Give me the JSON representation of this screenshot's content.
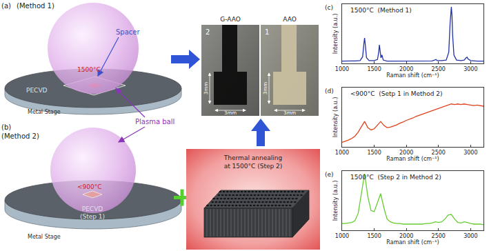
{
  "diagram": {
    "panel_a": {
      "label": "(a)",
      "method": "(Method 1)",
      "spacer": "Spacer",
      "temperature": "1500°C",
      "pecvd": "PECVD",
      "stage": "Metal Stage"
    },
    "panel_b": {
      "label": "(b)",
      "method": "(Method 2)",
      "temperature": "<900°C",
      "pecvd": "PECVD",
      "step": "(Step 1)",
      "stage": "Metal Stage"
    },
    "plasma_label": "Plasma ball",
    "photos": [
      {
        "label": "G-AAO",
        "number": "2",
        "width": "3mm",
        "height": "3mm"
      },
      {
        "label": "AAO",
        "number": "1",
        "width": "3mm",
        "height": "3mm"
      }
    ],
    "annealing": {
      "lines": [
        "Thermal annealing",
        "at 1500°C (Step 2)"
      ]
    }
  },
  "chart_data": [
    {
      "type": "line",
      "annotations": [
        "(c)",
        "1500°C  (Method 1)"
      ],
      "x_label": "Raman shift (cm⁻¹)",
      "y_label": "Intensity (a.u.)",
      "x": [
        1000,
        1100,
        1200,
        1280,
        1320,
        1340,
        1350,
        1360,
        1380,
        1420,
        1500,
        1550,
        1570,
        1580,
        1590,
        1605,
        1620,
        1640,
        1700,
        1800,
        2000,
        2200,
        2400,
        2440,
        2460,
        2480,
        2550,
        2620,
        2660,
        2680,
        2690,
        2700,
        2710,
        2720,
        2740,
        2780,
        2850,
        2900,
        2930,
        2945,
        2960,
        3000,
        3100,
        3200
      ],
      "values": [
        0.04,
        0.04,
        0.045,
        0.05,
        0.12,
        0.36,
        0.45,
        0.34,
        0.1,
        0.05,
        0.05,
        0.07,
        0.2,
        0.33,
        0.24,
        0.1,
        0.15,
        0.06,
        0.04,
        0.04,
        0.04,
        0.04,
        0.045,
        0.06,
        0.07,
        0.05,
        0.05,
        0.06,
        0.2,
        0.7,
        0.95,
        1.0,
        0.85,
        0.5,
        0.15,
        0.06,
        0.05,
        0.06,
        0.1,
        0.11,
        0.08,
        0.05,
        0.04,
        0.04
      ],
      "color": "#1f2fa8",
      "xlim": [
        1000,
        3200
      ],
      "xticks": [
        1000,
        1500,
        2000,
        2500,
        3000
      ],
      "ylim": [
        0,
        1.05
      ],
      "tick_labels": "x",
      "grid": false
    },
    {
      "type": "line",
      "annotations": [
        "(d)",
        "<900°C  (Setp 1 in Method 2)"
      ],
      "x_label": "Raman shift (cm⁻¹)",
      "y_label": "Intensity (a.u.)",
      "x": [
        1000,
        1050,
        1100,
        1150,
        1200,
        1250,
        1300,
        1350,
        1400,
        1450,
        1500,
        1550,
        1600,
        1650,
        1700,
        1750,
        1800,
        1850,
        1900,
        1950,
        2000,
        2050,
        2100,
        2150,
        2200,
        2250,
        2300,
        2350,
        2400,
        2450,
        2500,
        2550,
        2600,
        2650,
        2700,
        2750,
        2800,
        2850,
        2900,
        2950,
        3000,
        3050,
        3100,
        3150,
        3200
      ],
      "values": [
        0.08,
        0.1,
        0.12,
        0.15,
        0.19,
        0.26,
        0.35,
        0.45,
        0.34,
        0.3,
        0.32,
        0.38,
        0.45,
        0.38,
        0.34,
        0.35,
        0.37,
        0.39,
        0.42,
        0.44,
        0.47,
        0.49,
        0.51,
        0.54,
        0.56,
        0.58,
        0.6,
        0.62,
        0.64,
        0.66,
        0.68,
        0.7,
        0.72,
        0.74,
        0.76,
        0.75,
        0.76,
        0.75,
        0.76,
        0.75,
        0.74,
        0.73,
        0.74,
        0.73,
        0.72
      ],
      "color": "#e0401a",
      "xlim": [
        1000,
        3200
      ],
      "xticks": [
        1000,
        1500,
        2000,
        2500,
        3000
      ],
      "ylim": [
        0,
        1.05
      ],
      "tick_labels": "x",
      "grid": false
    },
    {
      "type": "line",
      "annotations": [
        "(e)",
        "1500°C  (Step 2 in Method 2)"
      ],
      "x_label": "Raman shift (cm⁻¹)",
      "y_label": "Intensity (a.u.)",
      "x": [
        1000,
        1050,
        1100,
        1150,
        1200,
        1250,
        1300,
        1350,
        1400,
        1450,
        1500,
        1550,
        1600,
        1650,
        1700,
        1750,
        1800,
        1850,
        1900,
        1950,
        2000,
        2050,
        2100,
        2150,
        2200,
        2250,
        2300,
        2350,
        2400,
        2450,
        2500,
        2550,
        2600,
        2650,
        2700,
        2750,
        2800,
        2850,
        2900,
        2950,
        3000,
        3050,
        3100,
        3150,
        3200
      ],
      "values": [
        0.12,
        0.12,
        0.13,
        0.14,
        0.17,
        0.3,
        0.65,
        1.0,
        0.6,
        0.35,
        0.33,
        0.5,
        0.65,
        0.4,
        0.2,
        0.15,
        0.13,
        0.12,
        0.12,
        0.11,
        0.11,
        0.11,
        0.11,
        0.11,
        0.11,
        0.11,
        0.12,
        0.12,
        0.13,
        0.15,
        0.14,
        0.15,
        0.2,
        0.27,
        0.28,
        0.2,
        0.14,
        0.13,
        0.15,
        0.14,
        0.12,
        0.11,
        0.11,
        0.11,
        0.1
      ],
      "color": "#66cc33",
      "xlim": [
        1000,
        3200
      ],
      "xticks": [
        1000,
        1500,
        2000,
        2500,
        3000
      ],
      "ylim": [
        0,
        1.05
      ],
      "tick_labels": "x",
      "grid": false
    }
  ]
}
